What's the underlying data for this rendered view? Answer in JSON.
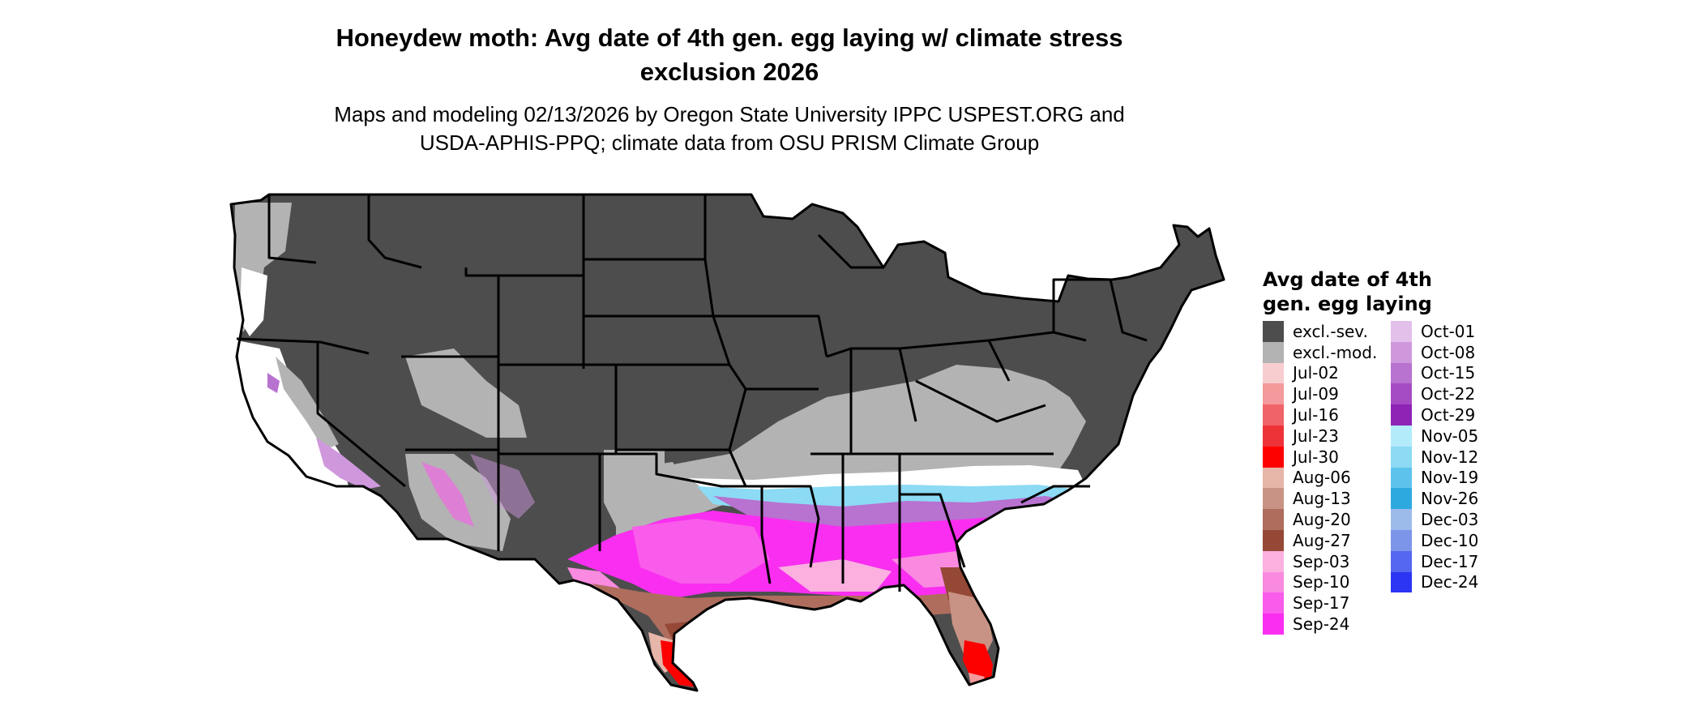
{
  "title": {
    "line1": "Honeydew moth: Avg date of 4th gen. egg laying w/ climate stress",
    "line2": "exclusion 2026"
  },
  "subtitle": {
    "line1": "Maps and modeling 02/13/2026 by Oregon State University IPPC USPEST.ORG and",
    "line2": "USDA-APHIS-PPQ; climate data from OSU PRISM Climate Group"
  },
  "legend": {
    "title_line1": "Avg date of 4th",
    "title_line2": "gen. egg laying",
    "column1": [
      {
        "label": "excl.-sev.",
        "color": "#4d4d4d"
      },
      {
        "label": "excl.-mod.",
        "color": "#b3b3b3"
      },
      {
        "label": "Jul-02",
        "color": "#f8cdd0"
      },
      {
        "label": "Jul-09",
        "color": "#f49a9c"
      },
      {
        "label": "Jul-16",
        "color": "#f06368"
      },
      {
        "label": "Jul-23",
        "color": "#ee3338"
      },
      {
        "label": "Jul-30",
        "color": "#fd0000"
      },
      {
        "label": "Aug-06",
        "color": "#e6b6a8"
      },
      {
        "label": "Aug-13",
        "color": "#c89384"
      },
      {
        "label": "Aug-20",
        "color": "#ae6d5d"
      },
      {
        "label": "Aug-27",
        "color": "#954836"
      },
      {
        "label": "Sep-03",
        "color": "#fbb0e0"
      },
      {
        "label": "Sep-10",
        "color": "#f98ae0"
      },
      {
        "label": "Sep-17",
        "color": "#f95cea"
      },
      {
        "label": "Sep-24",
        "color": "#fa2ef0"
      }
    ],
    "column2": [
      {
        "label": "Oct-01",
        "color": "#e3c0ea"
      },
      {
        "label": "Oct-08",
        "color": "#cf98dd"
      },
      {
        "label": "Oct-15",
        "color": "#b872d0"
      },
      {
        "label": "Oct-22",
        "color": "#a54bc3"
      },
      {
        "label": "Oct-29",
        "color": "#8f23b6"
      },
      {
        "label": "Nov-05",
        "color": "#b3ebfb"
      },
      {
        "label": "Nov-12",
        "color": "#8cdaf4"
      },
      {
        "label": "Nov-19",
        "color": "#5ec3ec"
      },
      {
        "label": "Nov-26",
        "color": "#2ea9e0"
      },
      {
        "label": "Dec-03",
        "color": "#9cbbeb"
      },
      {
        "label": "Dec-10",
        "color": "#7c95e8"
      },
      {
        "label": "Dec-17",
        "color": "#5566f0"
      },
      {
        "label": "Dec-24",
        "color": "#2b35f3"
      }
    ]
  },
  "map": {
    "region": "contiguous-united-states",
    "state_border_color": "#000000"
  }
}
